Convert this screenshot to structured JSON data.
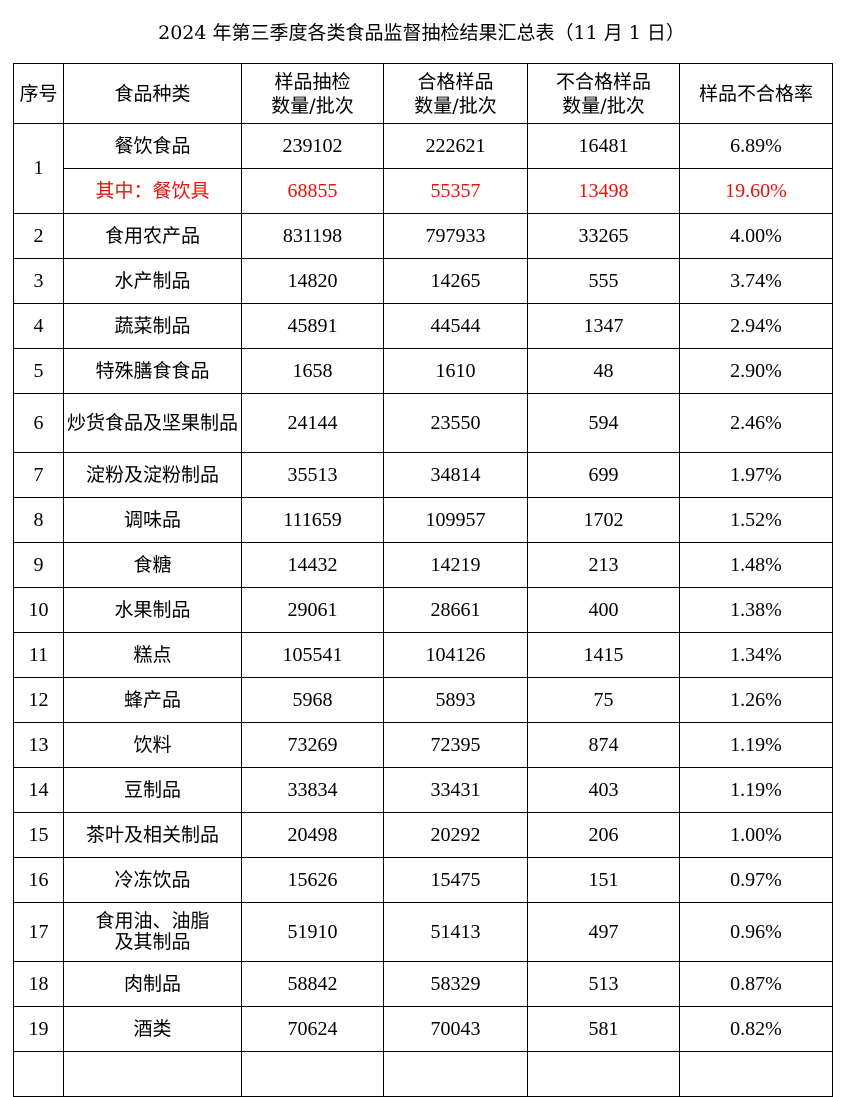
{
  "title": "2024 年第三季度各类食品监督抽检结果汇总表（11 月 1 日）",
  "headers": {
    "seq": "序号",
    "category": "食品种类",
    "sampled_line1": "样品抽检",
    "sampled_line2": "数量/批次",
    "qualified_line1": "合格样品",
    "qualified_line2": "数量/批次",
    "unqualified_line1": "不合格样品",
    "unqualified_line2": "数量/批次",
    "rate": "样品不合格率"
  },
  "rows": [
    {
      "seq": "1",
      "name": "餐饮食品",
      "sampled": "239102",
      "qualified": "222621",
      "unqualified": "16481",
      "rate": "6.89%"
    },
    {
      "name": "其中：餐饮具",
      "sampled": "68855",
      "qualified": "55357",
      "unqualified": "13498",
      "rate": "19.60%"
    },
    {
      "seq": "2",
      "name": "食用农产品",
      "sampled": "831198",
      "qualified": "797933",
      "unqualified": "33265",
      "rate": "4.00%"
    },
    {
      "seq": "3",
      "name": "水产制品",
      "sampled": "14820",
      "qualified": "14265",
      "unqualified": "555",
      "rate": "3.74%"
    },
    {
      "seq": "4",
      "name": "蔬菜制品",
      "sampled": "45891",
      "qualified": "44544",
      "unqualified": "1347",
      "rate": "2.94%"
    },
    {
      "seq": "5",
      "name": "特殊膳食食品",
      "sampled": "1658",
      "qualified": "1610",
      "unqualified": "48",
      "rate": "2.90%"
    },
    {
      "seq": "6",
      "name": "炒货食品及坚果制品",
      "sampled": "24144",
      "qualified": "23550",
      "unqualified": "594",
      "rate": "2.46%"
    },
    {
      "seq": "7",
      "name": "淀粉及淀粉制品",
      "sampled": "35513",
      "qualified": "34814",
      "unqualified": "699",
      "rate": "1.97%"
    },
    {
      "seq": "8",
      "name": "调味品",
      "sampled": "111659",
      "qualified": "109957",
      "unqualified": "1702",
      "rate": "1.52%"
    },
    {
      "seq": "9",
      "name": "食糖",
      "sampled": "14432",
      "qualified": "14219",
      "unqualified": "213",
      "rate": "1.48%"
    },
    {
      "seq": "10",
      "name": "水果制品",
      "sampled": "29061",
      "qualified": "28661",
      "unqualified": "400",
      "rate": "1.38%"
    },
    {
      "seq": "11",
      "name": "糕点",
      "sampled": "105541",
      "qualified": "104126",
      "unqualified": "1415",
      "rate": "1.34%"
    },
    {
      "seq": "12",
      "name": "蜂产品",
      "sampled": "5968",
      "qualified": "5893",
      "unqualified": "75",
      "rate": "1.26%"
    },
    {
      "seq": "13",
      "name": "饮料",
      "sampled": "73269",
      "qualified": "72395",
      "unqualified": "874",
      "rate": "1.19%"
    },
    {
      "seq": "14",
      "name": "豆制品",
      "sampled": "33834",
      "qualified": "33431",
      "unqualified": "403",
      "rate": "1.19%"
    },
    {
      "seq": "15",
      "name": "茶叶及相关制品",
      "sampled": "20498",
      "qualified": "20292",
      "unqualified": "206",
      "rate": "1.00%"
    },
    {
      "seq": "16",
      "name": "冷冻饮品",
      "sampled": "15626",
      "qualified": "15475",
      "unqualified": "151",
      "rate": "0.97%"
    },
    {
      "seq": "17",
      "name_line1": "食用油、油脂",
      "name_line2": "及其制品",
      "sampled": "51910",
      "qualified": "51413",
      "unqualified": "497",
      "rate": "0.96%"
    },
    {
      "seq": "18",
      "name": "肉制品",
      "sampled": "58842",
      "qualified": "58329",
      "unqualified": "513",
      "rate": "0.87%"
    },
    {
      "seq": "19",
      "name": "酒类",
      "sampled": "70624",
      "qualified": "70043",
      "unqualified": "581",
      "rate": "0.82%"
    }
  ],
  "colors": {
    "highlight": "#e8140c"
  }
}
